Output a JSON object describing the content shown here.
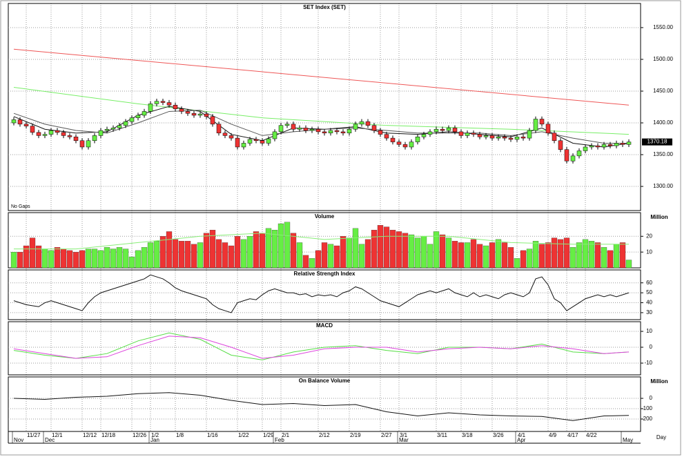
{
  "chart_data": [
    {
      "type": "candlestick",
      "title": "SET Index (SET)",
      "note": "No Gaps",
      "last_label": "1370.18",
      "up_color": "#66ee44",
      "down_color": "#ee3333",
      "ylim": [
        1262,
        1588
      ],
      "yticks": [
        {
          "value": 1550,
          "label": "1550.00"
        },
        {
          "value": 1500,
          "label": "1500.00"
        },
        {
          "value": 1450,
          "label": "1450.00"
        },
        {
          "value": 1400,
          "label": "1400.00"
        },
        {
          "value": 1350,
          "label": "1350.00"
        },
        {
          "value": 1300,
          "label": "1300.00"
        }
      ],
      "open": [
        1400,
        1405,
        1398,
        1395,
        1385,
        1380,
        1382,
        1388,
        1385,
        1380,
        1378,
        1372,
        1362,
        1372,
        1380,
        1388,
        1390,
        1392,
        1396,
        1402,
        1408,
        1412,
        1418,
        1430,
        1434,
        1432,
        1428,
        1422,
        1418,
        1415,
        1412,
        1414,
        1410,
        1398,
        1384,
        1380,
        1376,
        1362,
        1368,
        1374,
        1372,
        1368,
        1375,
        1386,
        1396,
        1398,
        1390,
        1392,
        1388,
        1390,
        1386,
        1384,
        1388,
        1386,
        1384,
        1390,
        1398,
        1402,
        1396,
        1388,
        1382,
        1376,
        1370,
        1366,
        1362,
        1370,
        1378,
        1382,
        1386,
        1390,
        1388,
        1392,
        1386,
        1380,
        1384,
        1382,
        1378,
        1380,
        1376,
        1378,
        1376,
        1374,
        1378,
        1376,
        1388,
        1406,
        1398,
        1384,
        1372,
        1358,
        1340,
        1348,
        1356,
        1362,
        1364,
        1362,
        1366,
        1364,
        1368,
        1366
      ],
      "high": [
        1409,
        1409,
        1402,
        1399,
        1389,
        1386,
        1392,
        1392,
        1389,
        1384,
        1382,
        1376,
        1376,
        1384,
        1392,
        1394,
        1396,
        1400,
        1406,
        1412,
        1416,
        1422,
        1434,
        1438,
        1438,
        1436,
        1432,
        1426,
        1422,
        1419,
        1418,
        1418,
        1414,
        1402,
        1388,
        1384,
        1380,
        1372,
        1378,
        1378,
        1376,
        1379,
        1390,
        1400,
        1402,
        1402,
        1396,
        1396,
        1394,
        1394,
        1390,
        1392,
        1392,
        1390,
        1394,
        1402,
        1406,
        1406,
        1400,
        1392,
        1386,
        1380,
        1374,
        1370,
        1374,
        1382,
        1386,
        1390,
        1394,
        1394,
        1396,
        1396,
        1390,
        1388,
        1388,
        1386,
        1384,
        1384,
        1382,
        1382,
        1380,
        1382,
        1382,
        1392,
        1410,
        1410,
        1402,
        1388,
        1376,
        1362,
        1352,
        1360,
        1366,
        1368,
        1368,
        1370,
        1370,
        1372,
        1372,
        1374
      ],
      "low": [
        1396,
        1394,
        1391,
        1381,
        1376,
        1376,
        1378,
        1381,
        1376,
        1374,
        1368,
        1358,
        1358,
        1368,
        1376,
        1384,
        1386,
        1388,
        1392,
        1398,
        1404,
        1408,
        1414,
        1426,
        1428,
        1424,
        1418,
        1414,
        1411,
        1408,
        1408,
        1406,
        1394,
        1380,
        1376,
        1372,
        1358,
        1358,
        1364,
        1368,
        1364,
        1364,
        1371,
        1382,
        1392,
        1386,
        1386,
        1384,
        1384,
        1382,
        1380,
        1380,
        1382,
        1380,
        1380,
        1386,
        1394,
        1392,
        1384,
        1378,
        1372,
        1366,
        1362,
        1358,
        1358,
        1366,
        1374,
        1378,
        1382,
        1384,
        1384,
        1382,
        1376,
        1376,
        1378,
        1374,
        1374,
        1372,
        1372,
        1372,
        1370,
        1370,
        1372,
        1372,
        1384,
        1394,
        1380,
        1368,
        1354,
        1336,
        1336,
        1344,
        1352,
        1358,
        1358,
        1358,
        1360,
        1360,
        1362,
        1362
      ],
      "close": [
        1405,
        1398,
        1395,
        1385,
        1380,
        1382,
        1388,
        1385,
        1380,
        1378,
        1372,
        1362,
        1372,
        1380,
        1388,
        1390,
        1392,
        1396,
        1402,
        1408,
        1412,
        1418,
        1430,
        1434,
        1432,
        1428,
        1422,
        1418,
        1415,
        1412,
        1414,
        1410,
        1398,
        1384,
        1380,
        1376,
        1362,
        1368,
        1374,
        1372,
        1368,
        1375,
        1386,
        1396,
        1398,
        1390,
        1392,
        1388,
        1390,
        1386,
        1384,
        1388,
        1386,
        1384,
        1390,
        1398,
        1402,
        1396,
        1388,
        1382,
        1376,
        1370,
        1366,
        1362,
        1370,
        1378,
        1382,
        1386,
        1390,
        1388,
        1392,
        1386,
        1380,
        1384,
        1382,
        1378,
        1380,
        1376,
        1378,
        1376,
        1374,
        1378,
        1376,
        1388,
        1406,
        1398,
        1384,
        1372,
        1358,
        1340,
        1348,
        1356,
        1362,
        1364,
        1362,
        1366,
        1364,
        1368,
        1366,
        1370
      ],
      "lines": [
        {
          "color": "#ee5555",
          "x": [
            0,
            99
          ],
          "values": [
            1516,
            1428
          ]
        },
        {
          "color": "#77ee66",
          "x": [
            0,
            20,
            40,
            60,
            80,
            99
          ],
          "values": [
            1456,
            1430,
            1408,
            1396,
            1390,
            1382
          ]
        },
        {
          "color": "#111111",
          "x": [
            0,
            5,
            10,
            15,
            20,
            25,
            30,
            35,
            40,
            45,
            50,
            55,
            60,
            65,
            70,
            75,
            80,
            85,
            90,
            95,
            99
          ],
          "values": [
            1410,
            1390,
            1384,
            1386,
            1412,
            1426,
            1418,
            1382,
            1372,
            1392,
            1390,
            1394,
            1384,
            1382,
            1386,
            1382,
            1378,
            1392,
            1368,
            1362,
            1368
          ]
        },
        {
          "color": "#555555",
          "x": [
            0,
            5,
            10,
            15,
            20,
            25,
            30,
            35,
            40,
            45,
            50,
            55,
            60,
            65,
            70,
            75,
            80,
            85,
            90,
            95,
            99
          ],
          "values": [
            1415,
            1398,
            1388,
            1384,
            1400,
            1418,
            1420,
            1398,
            1380,
            1386,
            1390,
            1392,
            1388,
            1384,
            1384,
            1384,
            1380,
            1386,
            1376,
            1368,
            1368
          ]
        }
      ]
    },
    {
      "type": "bar",
      "title": "Volume",
      "unit": "Million",
      "up_color": "#66ee44",
      "down_color": "#ee3333",
      "ylim": [
        0,
        35
      ],
      "yticks": [
        20,
        10
      ],
      "values": [
        10,
        10,
        14,
        19,
        14,
        12,
        11,
        13,
        12,
        11,
        10,
        11,
        12,
        12,
        11,
        13,
        12,
        13,
        12,
        7,
        11,
        13,
        16,
        17,
        20,
        23,
        18,
        17,
        17,
        15,
        16,
        22,
        24,
        18,
        16,
        14,
        20,
        18,
        20,
        23,
        22,
        25,
        24,
        28,
        29,
        22,
        16,
        8,
        6,
        11,
        16,
        15,
        14,
        20,
        19,
        25,
        15,
        18,
        24,
        27,
        26,
        24,
        23,
        22,
        21,
        19,
        20,
        15,
        23,
        21,
        19,
        17,
        16,
        16,
        18,
        15,
        14,
        16,
        18,
        16,
        13,
        6,
        11,
        12,
        17,
        15,
        16,
        19,
        18,
        19,
        13,
        16,
        18,
        17,
        16,
        13,
        11,
        15,
        16,
        5
      ],
      "overlay": {
        "color": "#88ee77",
        "x": [
          0,
          10,
          20,
          30,
          40,
          50,
          60,
          70,
          80,
          90,
          99
        ],
        "values": [
          12,
          12,
          16,
          20,
          22,
          18,
          20,
          20,
          16,
          15,
          15
        ]
      }
    },
    {
      "type": "line",
      "title": "Relative Strength Index",
      "color": "#111111",
      "ylim": [
        23,
        73
      ],
      "yticks": [
        60,
        50,
        40,
        30
      ],
      "values": [
        42,
        40,
        38,
        37,
        36,
        40,
        42,
        40,
        38,
        36,
        34,
        32,
        40,
        46,
        50,
        52,
        54,
        56,
        58,
        60,
        62,
        64,
        68,
        66,
        64,
        60,
        55,
        52,
        50,
        48,
        46,
        44,
        38,
        34,
        32,
        30,
        40,
        42,
        44,
        43,
        48,
        52,
        54,
        52,
        50,
        50,
        48,
        49,
        46,
        48,
        47,
        48,
        46,
        50,
        52,
        56,
        54,
        50,
        46,
        42,
        40,
        38,
        36,
        40,
        44,
        48,
        50,
        52,
        50,
        52,
        54,
        50,
        48,
        46,
        50,
        46,
        48,
        46,
        44,
        48,
        50,
        48,
        46,
        50,
        64,
        66,
        58,
        44,
        40,
        32,
        36,
        40,
        44,
        46,
        48,
        46,
        48,
        46,
        48,
        50
      ]
    },
    {
      "type": "line",
      "title": "MACD",
      "ylim": [
        -17.4,
        16.1
      ],
      "yticks": [
        10,
        0,
        -10
      ],
      "lines": [
        {
          "color": "#55dd44",
          "x": [
            0,
            5,
            10,
            15,
            20,
            25,
            30,
            35,
            40,
            45,
            50,
            55,
            60,
            65,
            70,
            75,
            80,
            85,
            90,
            95,
            99
          ],
          "values": [
            -2,
            -5,
            -7,
            -4,
            4,
            9,
            5,
            -5,
            -8,
            -3,
            0,
            1,
            -2,
            -4,
            0,
            0,
            -1,
            2,
            -3,
            -4,
            -3
          ]
        },
        {
          "color": "#dd44dd",
          "x": [
            0,
            5,
            10,
            15,
            20,
            25,
            30,
            35,
            40,
            45,
            50,
            55,
            60,
            65,
            70,
            75,
            80,
            85,
            90,
            95,
            99
          ],
          "values": [
            -1,
            -4,
            -7,
            -6,
            1,
            7,
            6,
            0,
            -7,
            -5,
            -1,
            0,
            0,
            -3,
            -1,
            0,
            -1,
            1,
            -1,
            -4,
            -3
          ]
        }
      ]
    },
    {
      "type": "line",
      "title": "On Balance Volume",
      "unit": "Million",
      "ylim": [
        -320,
        207
      ],
      "yticks": [
        0,
        -100,
        -200
      ],
      "lines": [
        {
          "color": "#111111",
          "x": [
            0,
            5,
            10,
            15,
            20,
            25,
            30,
            35,
            40,
            45,
            50,
            55,
            60,
            65,
            70,
            75,
            80,
            85,
            90,
            95,
            99
          ],
          "values": [
            0,
            -10,
            10,
            20,
            45,
            55,
            30,
            -20,
            -60,
            -50,
            -70,
            -60,
            -130,
            -170,
            -140,
            -160,
            -170,
            -175,
            -215,
            -170,
            -165
          ]
        }
      ]
    }
  ],
  "x_axis": {
    "label": "Day",
    "ticks": [
      {
        "value": 2,
        "label": "11/27"
      },
      {
        "value": 6,
        "label": "12/1"
      },
      {
        "value": 11,
        "label": "12/12"
      },
      {
        "value": 14,
        "label": "12/18"
      },
      {
        "value": 19,
        "label": "12/26"
      },
      {
        "value": 22,
        "label": "1/2"
      },
      {
        "value": 26,
        "label": "1/8"
      },
      {
        "value": 31,
        "label": "1/16"
      },
      {
        "value": 36,
        "label": "1/22"
      },
      {
        "value": 40,
        "label": "1/29"
      },
      {
        "value": 43,
        "label": "2/1"
      },
      {
        "value": 49,
        "label": "2/12"
      },
      {
        "value": 54,
        "label": "2/19"
      },
      {
        "value": 59,
        "label": "2/27"
      },
      {
        "value": 62,
        "label": "3/1"
      },
      {
        "value": 68,
        "label": "3/11"
      },
      {
        "value": 72,
        "label": "3/18"
      },
      {
        "value": 77,
        "label": "3/26"
      },
      {
        "value": 81,
        "label": "4/1"
      },
      {
        "value": 86,
        "label": "4/9"
      },
      {
        "value": 89,
        "label": "4/17"
      },
      {
        "value": 92,
        "label": "4/22"
      }
    ],
    "months": [
      {
        "value": 0,
        "label": "Nov"
      },
      {
        "value": 5,
        "label": "Dec"
      },
      {
        "value": 22,
        "label": "Jan"
      },
      {
        "value": 42,
        "label": "Feb"
      },
      {
        "value": 62,
        "label": "Mar"
      },
      {
        "value": 81,
        "label": "Apr"
      },
      {
        "value": 98,
        "label": "May"
      }
    ]
  }
}
